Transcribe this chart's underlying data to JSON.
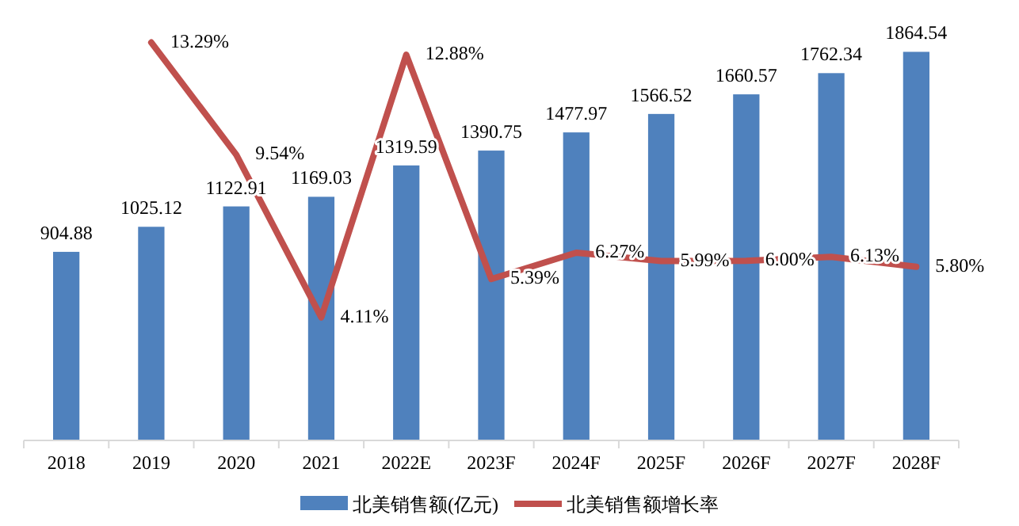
{
  "chart_data": {
    "type": "bar",
    "categories": [
      "2018",
      "2019",
      "2020",
      "2021",
      "2022E",
      "2023F",
      "2024F",
      "2025F",
      "2026F",
      "2027F",
      "2028F"
    ],
    "series": [
      {
        "name": "北美销售额(亿元)",
        "color": "#4f81bd",
        "values": [
          904.88,
          1025.12,
          1122.91,
          1169.03,
          1319.59,
          1390.75,
          1477.97,
          1566.52,
          1660.57,
          1762.34,
          1864.54
        ]
      },
      {
        "name": "北美销售额增长率",
        "type": "line",
        "axis": "y2",
        "color": "#c0504d",
        "values": [
          null,
          13.29,
          9.54,
          4.11,
          12.88,
          5.39,
          6.27,
          5.99,
          6.0,
          6.13,
          5.8
        ],
        "value_labels": [
          null,
          "13.29%",
          "9.54%",
          "4.11%",
          "12.88%",
          "5.39%",
          "6.27%",
          "5.99%",
          "6.00%",
          "6.13%",
          "5.80%"
        ]
      }
    ],
    "data_labels": true,
    "legend": "bottom",
    "tick_labels": "x"
  }
}
